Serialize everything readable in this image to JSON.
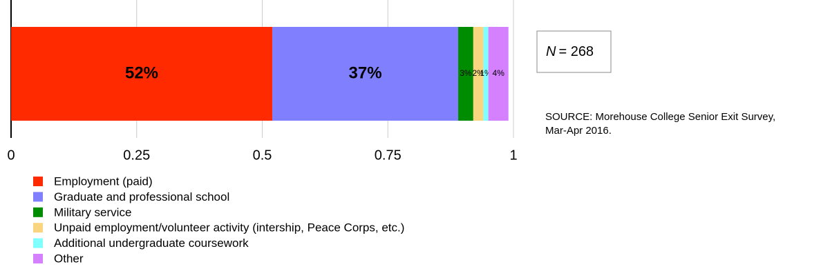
{
  "chart_data": {
    "type": "stacked-bar",
    "orientation": "horizontal",
    "categories": [
      null
    ],
    "series": [
      {
        "name": "Employment (paid)",
        "color": "#ff2a00",
        "values": [
          0.52
        ],
        "value_labels": [
          "52%"
        ]
      },
      {
        "name": "Graduate and professional school",
        "color": "#8080ff",
        "values": [
          0.37
        ],
        "value_labels": [
          "37%"
        ]
      },
      {
        "name": "Military service",
        "color": "#008c00",
        "values": [
          0.03
        ],
        "value_labels": [
          "3%"
        ]
      },
      {
        "name": "Unpaid employment/volunteer activity (intership, Peace Corps, etc.)",
        "color": "#f9d580",
        "values": [
          0.02
        ],
        "value_labels": [
          "2%"
        ]
      },
      {
        "name": "Additional undergraduate coursework",
        "color": "#80ffff",
        "values": [
          0.01
        ],
        "value_labels": [
          "1%"
        ]
      },
      {
        "name": "Other",
        "color": "#d580ff",
        "values": [
          0.04
        ],
        "value_labels": [
          "4%"
        ]
      }
    ],
    "xlim": [
      0,
      1
    ],
    "xticks": [
      0,
      0.25,
      0.5,
      0.75,
      1
    ],
    "grid": true,
    "annotation": {
      "italic": "N",
      "text": "= 268"
    },
    "source": [
      "SOURCE:  Morehouse College Senior Exit Survey,",
      "Mar-Apr 2016."
    ]
  }
}
